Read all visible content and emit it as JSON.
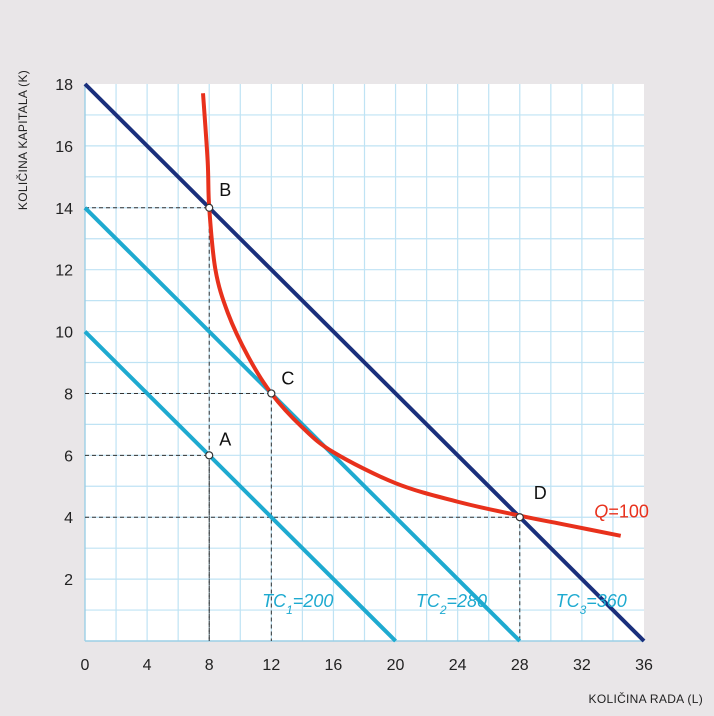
{
  "chart_data": {
    "type": "line",
    "xlabel": "KOLIČINA RADA (L)",
    "ylabel": "KOLIČINA KAPITALA (K)",
    "xlim": [
      0,
      36
    ],
    "ylim": [
      0,
      18
    ],
    "xticks": [
      "0",
      "4",
      "8",
      "12",
      "16",
      "20",
      "24",
      "28",
      "32",
      "36"
    ],
    "yticks": [
      "2",
      "4",
      "6",
      "8",
      "10",
      "12",
      "14",
      "16",
      "18"
    ],
    "grid": true,
    "series": [
      {
        "name": "TC1=200",
        "sub": "1",
        "value_text": "=200",
        "color": "#1eaad0",
        "points": [
          [
            0,
            10
          ],
          [
            20,
            0
          ]
        ]
      },
      {
        "name": "TC2=280",
        "sub": "2",
        "value_text": "=280",
        "color": "#1eaad0",
        "points": [
          [
            0,
            14
          ],
          [
            28,
            0
          ]
        ]
      },
      {
        "name": "TC3=360",
        "sub": "3",
        "value_text": "=360",
        "color": "#1a2f7c",
        "label_color": "#1eaad0",
        "points": [
          [
            0,
            18
          ],
          [
            36,
            0
          ]
        ]
      },
      {
        "name": "Q=100",
        "color": "#e8311c",
        "points": [
          [
            7.6,
            17.7
          ],
          [
            7.9,
            15.5
          ],
          [
            8,
            14
          ],
          [
            8.4,
            12
          ],
          [
            9.2,
            10.6
          ],
          [
            10.5,
            9.2
          ],
          [
            12,
            8
          ],
          [
            14,
            6.9
          ],
          [
            16,
            6.1
          ],
          [
            20,
            5.1
          ],
          [
            24,
            4.5
          ],
          [
            28,
            4.05
          ],
          [
            31,
            3.75
          ],
          [
            34.5,
            3.4
          ]
        ]
      }
    ],
    "points": [
      {
        "label": "A",
        "x": 8,
        "y": 6
      },
      {
        "label": "B",
        "x": 8,
        "y": 14
      },
      {
        "label": "C",
        "x": 12,
        "y": 8
      },
      {
        "label": "D",
        "x": 28,
        "y": 4
      }
    ]
  }
}
